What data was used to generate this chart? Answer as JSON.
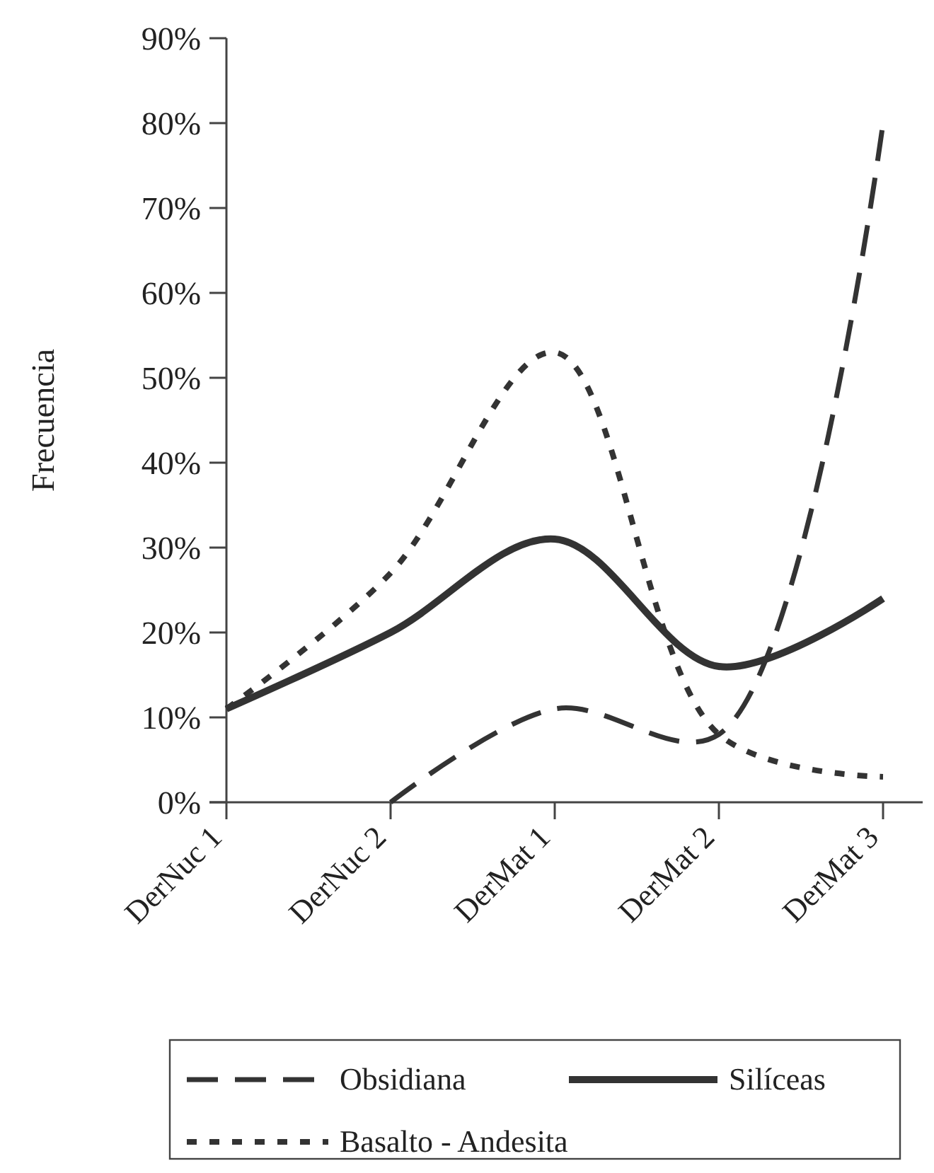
{
  "chart_data": {
    "type": "line",
    "ylabel": "Frecuencia",
    "categories": [
      "DerNuc 1",
      "DerNuc 2",
      "DerMat 1",
      "DerMat 2",
      "DerMat 3"
    ],
    "ylim": [
      0,
      90
    ],
    "yticks": [
      {
        "value": 0,
        "label": "0%"
      },
      {
        "value": 10,
        "label": "10%"
      },
      {
        "value": 20,
        "label": "20%"
      },
      {
        "value": 30,
        "label": "30%"
      },
      {
        "value": 40,
        "label": "40%"
      },
      {
        "value": 50,
        "label": "50%"
      },
      {
        "value": 60,
        "label": "60%"
      },
      {
        "value": 70,
        "label": "70%"
      },
      {
        "value": 80,
        "label": "80%"
      },
      {
        "value": 90,
        "label": "90%"
      }
    ],
    "grid": false,
    "legend": "bottom",
    "series": [
      {
        "name": "Obsidiana",
        "color": "#333333",
        "line_style": "dashed",
        "values": [
          null,
          0,
          11,
          8,
          80
        ]
      },
      {
        "name": "Silíceas",
        "color": "#333333",
        "line_style": "solid",
        "values": [
          11,
          20,
          31,
          16,
          24
        ]
      },
      {
        "name": "Basalto - Andesita",
        "color": "#333333",
        "line_style": "dotted",
        "values": [
          11,
          27,
          53,
          8,
          3
        ]
      }
    ]
  }
}
